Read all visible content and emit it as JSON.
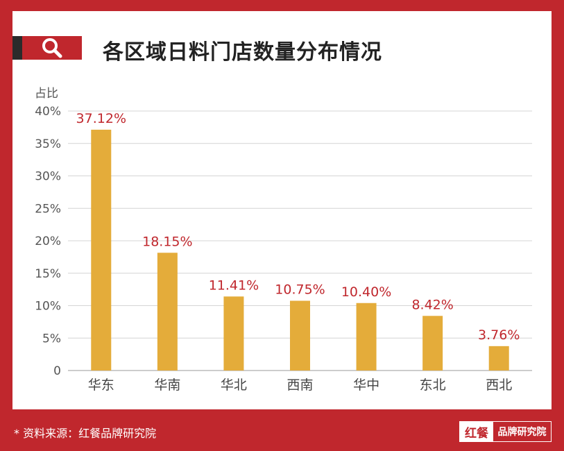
{
  "title": "各区域日料门店数量分布情况",
  "footer": {
    "source": "* 资料来源：红餐品牌研究院",
    "brand_logo": "红餐",
    "brand_name": "品牌研究院"
  },
  "icons": {
    "title_icon": "search-icon"
  },
  "colors": {
    "frame": "#c0272d",
    "bar": "#e4ac3a",
    "label": "#c0272d",
    "title_dark": "#2b2b2b"
  },
  "chart_data": {
    "type": "bar",
    "title": "各区域日料门店数量分布情况",
    "ylabel": "占比",
    "xlabel": "",
    "categories": [
      "华东",
      "华南",
      "华北",
      "西南",
      "华中",
      "东北",
      "西北"
    ],
    "values": [
      37.12,
      18.15,
      11.41,
      10.75,
      10.4,
      8.42,
      3.76
    ],
    "data_labels": [
      "37.12%",
      "18.15%",
      "11.41%",
      "10.75%",
      "10.40%",
      "8.42%",
      "3.76%"
    ],
    "ylim": [
      0,
      40
    ],
    "yticks": [
      0,
      5,
      10,
      15,
      20,
      25,
      30,
      35,
      40
    ],
    "ytick_labels": [
      "0",
      "5%",
      "10%",
      "15%",
      "20%",
      "25%",
      "30%",
      "35%",
      "40%"
    ],
    "grid": true,
    "legend": "none"
  }
}
